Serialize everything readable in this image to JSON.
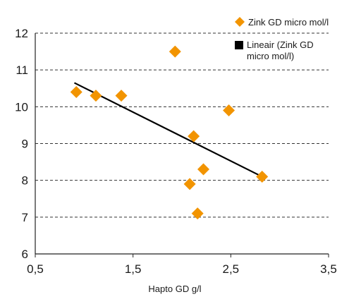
{
  "chart_data": {
    "type": "scatter",
    "title": "",
    "xlabel": "Hapto GD g/l",
    "ylabel": "",
    "xlim": [
      0.5,
      3.5
    ],
    "ylim": [
      6,
      12
    ],
    "x_ticks": [
      0.5,
      1.5,
      2.5,
      3.5
    ],
    "x_tick_labels": [
      "0,5",
      "1,5",
      "2,5",
      "3,5"
    ],
    "y_ticks": [
      6,
      7,
      8,
      9,
      10,
      11,
      12
    ],
    "y_tick_labels": [
      "6",
      "7",
      "8",
      "9",
      "10",
      "11",
      "12"
    ],
    "grid": "horizontal dashed",
    "legend_position": "top-right",
    "series": [
      {
        "name": "Zink GD micro mol/l",
        "kind": "scatter",
        "marker": "diamond",
        "color": "#f29400",
        "points": [
          {
            "x": 0.92,
            "y": 10.4
          },
          {
            "x": 1.12,
            "y": 10.3
          },
          {
            "x": 1.38,
            "y": 10.3
          },
          {
            "x": 1.93,
            "y": 11.5
          },
          {
            "x": 2.48,
            "y": 9.9
          },
          {
            "x": 2.12,
            "y": 9.2
          },
          {
            "x": 2.22,
            "y": 8.3
          },
          {
            "x": 2.08,
            "y": 7.9
          },
          {
            "x": 2.16,
            "y": 7.1
          },
          {
            "x": 2.82,
            "y": 8.1
          }
        ]
      },
      {
        "name": "Lineair (Zink GD micro mol/l)",
        "name_lines": [
          "Lineair (Zink GD",
          "micro mol/l)"
        ],
        "kind": "line",
        "color": "#000000",
        "points": [
          {
            "x": 0.9,
            "y": 10.65
          },
          {
            "x": 2.82,
            "y": 8.1
          }
        ]
      }
    ]
  }
}
